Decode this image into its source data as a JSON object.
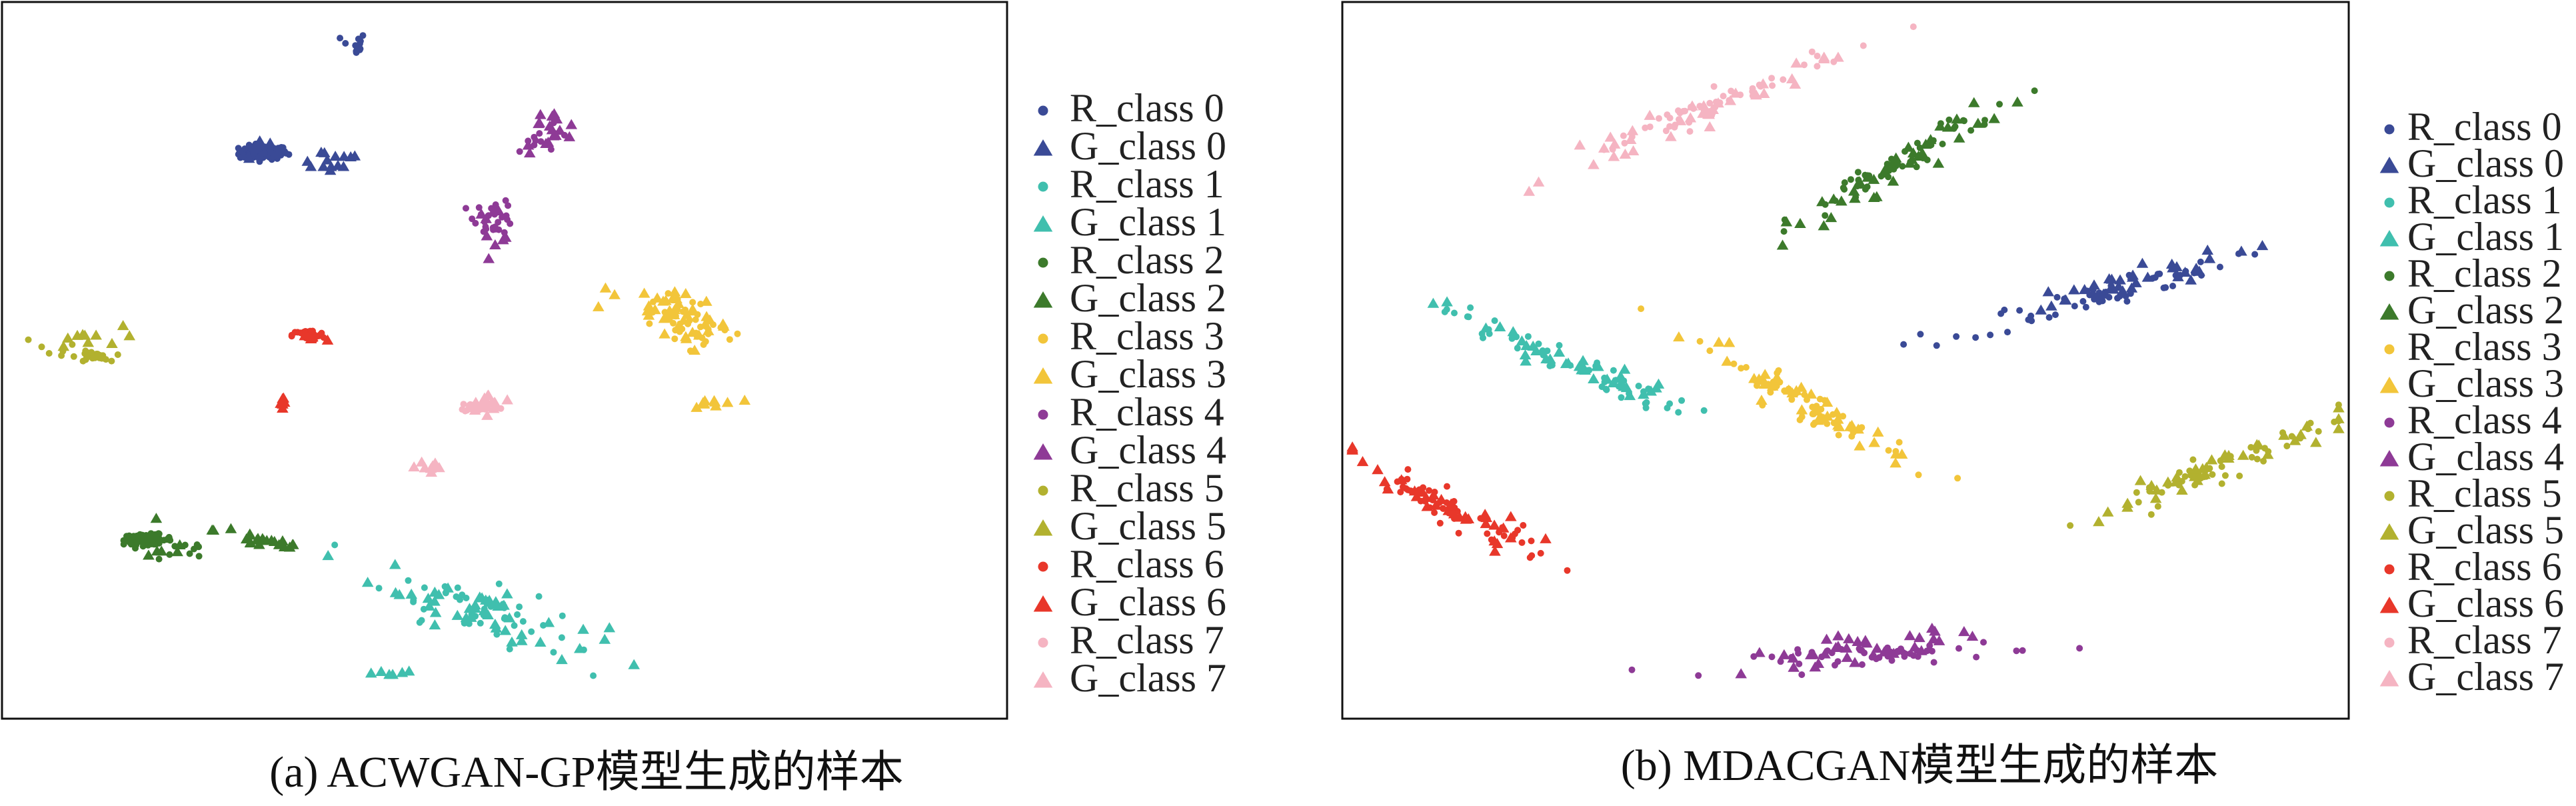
{
  "class_colors": [
    "#3a4a96",
    "#40bfae",
    "#3c7a2b",
    "#f2c53a",
    "#8e3a96",
    "#b2b12f",
    "#e8372a",
    "#f5b4c2"
  ],
  "legend_labels": [
    "R_class 0",
    "G_class 0",
    "R_class 1",
    "G_class 1",
    "R_class 2",
    "G_class 2",
    "R_class 3",
    "G_class 3",
    "R_class 4",
    "G_class 4",
    "R_class 5",
    "G_class 5",
    "R_class 6",
    "G_class 6",
    "R_class 7",
    "G_class 7"
  ],
  "chart_data": [
    {
      "type": "scatter",
      "caption": "(a)  ACWGAN-GP模型生成的样本",
      "xlim": [
        0,
        100
      ],
      "ylim": [
        0,
        100
      ],
      "series": [
        {
          "name": "R_class 0",
          "marker": "circle",
          "clusters": [
            {
              "x": 26,
              "y": 79,
              "sx": 1.2,
              "sy": 0.8,
              "n": 120
            },
            {
              "x": 35,
              "y": 94,
              "sx": 0.6,
              "sy": 1.5,
              "n": 12
            }
          ]
        },
        {
          "name": "G_class 0",
          "marker": "triangle",
          "clusters": [
            {
              "x": 32.5,
              "y": 78,
              "sx": 2.0,
              "sy": 1.5,
              "n": 14
            },
            {
              "x": 25.5,
              "y": 80,
              "sx": 1.0,
              "sy": 2.5,
              "n": 6
            }
          ]
        },
        {
          "name": "R_class 1",
          "marker": "circle",
          "clusters": [
            {
              "x": 48,
              "y": 15,
              "sx": 5,
              "sy": 3,
              "n": 50,
              "angle": -25
            }
          ]
        },
        {
          "name": "G_class 1",
          "marker": "triangle",
          "clusters": [
            {
              "x": 48,
              "y": 15,
              "sx": 6,
              "sy": 3,
              "n": 45,
              "angle": -25
            },
            {
              "x": 38.5,
              "y": 6.5,
              "sx": 1.2,
              "sy": 0.6,
              "n": 6
            }
          ]
        },
        {
          "name": "R_class 2",
          "marker": "circle",
          "clusters": [
            {
              "x": 14.5,
              "y": 25,
              "sx": 1.2,
              "sy": 0.6,
              "n": 80
            },
            {
              "x": 18,
              "y": 23,
              "sx": 1.5,
              "sy": 2,
              "n": 8
            }
          ]
        },
        {
          "name": "G_class 2",
          "marker": "triangle",
          "clusters": [
            {
              "x": 26,
              "y": 25,
              "sx": 2.5,
              "sy": 1.2,
              "n": 22,
              "angle": -15
            },
            {
              "x": 16,
              "y": 24,
              "sx": 1.5,
              "sy": 2.0,
              "n": 7
            }
          ]
        },
        {
          "name": "R_class 3",
          "marker": "circle",
          "clusters": [
            {
              "x": 68,
              "y": 55,
              "sx": 3,
              "sy": 2.5,
              "n": 40,
              "angle": -40
            }
          ]
        },
        {
          "name": "G_class 3",
          "marker": "triangle",
          "clusters": [
            {
              "x": 67,
              "y": 56,
              "sx": 3,
              "sy": 2.5,
              "n": 40,
              "angle": -40
            },
            {
              "x": 71,
              "y": 44,
              "sx": 1.2,
              "sy": 1,
              "n": 10
            }
          ]
        },
        {
          "name": "R_class 4",
          "marker": "circle",
          "clusters": [
            {
              "x": 49,
              "y": 70,
              "sx": 1,
              "sy": 2,
              "n": 30
            },
            {
              "x": 54,
              "y": 81,
              "sx": 1.5,
              "sy": 1.5,
              "n": 10
            }
          ]
        },
        {
          "name": "G_class 4",
          "marker": "triangle",
          "clusters": [
            {
              "x": 54.5,
              "y": 82,
              "sx": 1.5,
              "sy": 2.5,
              "n": 18
            },
            {
              "x": 49,
              "y": 69,
              "sx": 1.0,
              "sy": 2.0,
              "n": 8
            }
          ]
        },
        {
          "name": "R_class 5",
          "marker": "circle",
          "clusters": [
            {
              "x": 9,
              "y": 50.5,
              "sx": 0.8,
              "sy": 0.6,
              "n": 30
            },
            {
              "x": 5,
              "y": 52,
              "sx": 1.5,
              "sy": 1,
              "n": 6
            }
          ]
        },
        {
          "name": "G_class 5",
          "marker": "triangle",
          "clusters": [
            {
              "x": 8,
              "y": 53,
              "sx": 2,
              "sy": 1.5,
              "n": 10
            }
          ]
        },
        {
          "name": "R_class 6",
          "marker": "circle",
          "clusters": [
            {
              "x": 30.5,
              "y": 53.5,
              "sx": 0.8,
              "sy": 0.6,
              "n": 35
            }
          ]
        },
        {
          "name": "G_class 6",
          "marker": "triangle",
          "clusters": [
            {
              "x": 28,
              "y": 44,
              "sx": 0.3,
              "sy": 1.2,
              "n": 7
            },
            {
              "x": 31,
              "y": 53,
              "sx": 0.8,
              "sy": 0.8,
              "n": 5
            }
          ]
        },
        {
          "name": "R_class 7",
          "marker": "circle",
          "clusters": [
            {
              "x": 47.5,
              "y": 43.5,
              "sx": 1.0,
              "sy": 0.6,
              "n": 40
            }
          ]
        },
        {
          "name": "G_class 7",
          "marker": "triangle",
          "clusters": [
            {
              "x": 48.5,
              "y": 44,
              "sx": 1.2,
              "sy": 1,
              "n": 16
            },
            {
              "x": 42.5,
              "y": 35,
              "sx": 0.8,
              "sy": 1.8,
              "n": 8
            }
          ]
        }
      ]
    },
    {
      "type": "scatter",
      "caption": "(b)  MDACGAN模型生成的样本",
      "xlim": [
        0,
        100
      ],
      "ylim": [
        0,
        100
      ],
      "series": [
        {
          "name": "R_class 0",
          "marker": "circle",
          "clusters": [
            {
              "x": 75,
              "y": 59,
              "sx": 7,
              "sy": 1.5,
              "n": 55,
              "angle": 20
            }
          ]
        },
        {
          "name": "G_class 0",
          "marker": "triangle",
          "clusters": [
            {
              "x": 76,
              "y": 60,
              "sx": 7,
              "sy": 1.5,
              "n": 35,
              "angle": 20
            }
          ]
        },
        {
          "name": "R_class 1",
          "marker": "circle",
          "clusters": [
            {
              "x": 22,
              "y": 50,
              "sx": 7,
              "sy": 1.5,
              "n": 55,
              "angle": -30
            }
          ]
        },
        {
          "name": "G_class 1",
          "marker": "triangle",
          "clusters": [
            {
              "x": 22,
              "y": 50,
              "sx": 7,
              "sy": 1.5,
              "n": 35,
              "angle": -30
            }
          ]
        },
        {
          "name": "R_class 2",
          "marker": "circle",
          "clusters": [
            {
              "x": 56,
              "y": 78,
              "sx": 7,
              "sy": 1.5,
              "n": 55,
              "angle": 40
            }
          ]
        },
        {
          "name": "G_class 2",
          "marker": "triangle",
          "clusters": [
            {
              "x": 55,
              "y": 77,
              "sx": 7,
              "sy": 1.5,
              "n": 35,
              "angle": 40
            }
          ]
        },
        {
          "name": "R_class 3",
          "marker": "circle",
          "clusters": [
            {
              "x": 46,
              "y": 44,
              "sx": 7,
              "sy": 1.5,
              "n": 55,
              "angle": -38
            }
          ]
        },
        {
          "name": "G_class 3",
          "marker": "triangle",
          "clusters": [
            {
              "x": 46,
              "y": 44,
              "sx": 7,
              "sy": 1.5,
              "n": 35,
              "angle": -38
            }
          ]
        },
        {
          "name": "R_class 4",
          "marker": "circle",
          "clusters": [
            {
              "x": 55,
              "y": 9,
              "sx": 7,
              "sy": 1.2,
              "n": 50,
              "angle": 5
            }
          ]
        },
        {
          "name": "G_class 4",
          "marker": "triangle",
          "clusters": [
            {
              "x": 52,
              "y": 10,
              "sx": 6,
              "sy": 1.5,
              "n": 35,
              "angle": 10
            }
          ]
        },
        {
          "name": "R_class 5",
          "marker": "circle",
          "clusters": [
            {
              "x": 87,
              "y": 35,
              "sx": 7,
              "sy": 1.5,
              "n": 50,
              "angle": 28
            }
          ]
        },
        {
          "name": "G_class 5",
          "marker": "triangle",
          "clusters": [
            {
              "x": 87,
              "y": 35,
              "sx": 7,
              "sy": 1.5,
              "n": 35,
              "angle": 28
            }
          ]
        },
        {
          "name": "R_class 6",
          "marker": "circle",
          "clusters": [
            {
              "x": 11,
              "y": 29,
              "sx": 6,
              "sy": 1.5,
              "n": 50,
              "angle": -35
            }
          ]
        },
        {
          "name": "G_class 6",
          "marker": "triangle",
          "clusters": [
            {
              "x": 11,
              "y": 29,
              "sx": 6,
              "sy": 1.5,
              "n": 35,
              "angle": -35
            }
          ]
        },
        {
          "name": "R_class 7",
          "marker": "circle",
          "clusters": [
            {
              "x": 36,
              "y": 85,
              "sx": 8,
              "sy": 1.5,
              "n": 55,
              "angle": 30
            }
          ]
        },
        {
          "name": "G_class 7",
          "marker": "triangle",
          "clusters": [
            {
              "x": 35,
              "y": 84,
              "sx": 8,
              "sy": 1.5,
              "n": 35,
              "angle": 30
            }
          ]
        }
      ]
    }
  ]
}
